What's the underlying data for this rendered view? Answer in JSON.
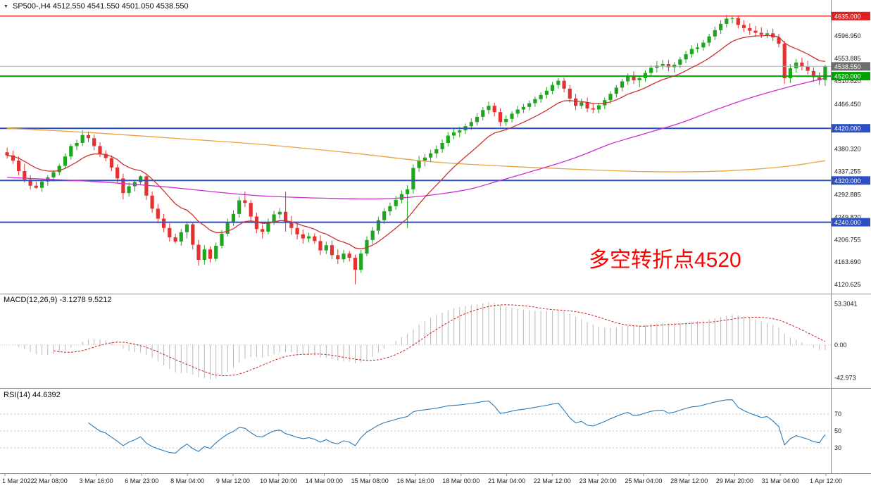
{
  "header": {
    "symbol": "SP500-,H4",
    "ohlc": "4512.550 4541.550 4501.050 4538.550"
  },
  "icons": {
    "symbol_triangle": "▼"
  },
  "colors": {
    "background": "#ffffff",
    "candle_up": "#1fa51f",
    "candle_down": "#e23232",
    "ma_fast": "#cc3333",
    "ma_medium": "#cc2fcc",
    "ma_slow": "#e8a33c",
    "macd_histogram": "#b9b9b9",
    "macd_signal": "#d02020",
    "rsi_line": "#2a7ab8",
    "annotation": "#ff0000",
    "panel_border": "#8a8a8a",
    "axis_text": "#1a1a1a"
  },
  "chart_data": [
    {
      "type": "candlestick",
      "symbol": "SP500-",
      "timeframe": "H4",
      "ohlc_current": {
        "open": 4512.55,
        "high": 4541.55,
        "low": 4501.05,
        "close": 4538.55
      },
      "price_range": [
        4110,
        4655
      ],
      "annotation": {
        "text": "多空转折点4520",
        "color": "#ff0000"
      },
      "y_ticks": [
        {
          "value": 4596.95,
          "text": "4596.950"
        },
        {
          "value": 4553.885,
          "text": "4553.885"
        },
        {
          "value": 4510.82,
          "text": "4510.820"
        },
        {
          "value": 4466.45,
          "text": "4466.450"
        },
        {
          "value": 4380.32,
          "text": "4380.320"
        },
        {
          "value": 4337.255,
          "text": "4337.255"
        },
        {
          "value": 4292.885,
          "text": "4292.885"
        },
        {
          "value": 4249.82,
          "text": "4249.820"
        },
        {
          "value": 4206.755,
          "text": "4206.755"
        },
        {
          "value": 4163.69,
          "text": "4163.690"
        },
        {
          "value": 4120.625,
          "text": "4120.625"
        }
      ],
      "h_lines": [
        {
          "price": 4635.0,
          "label": "4635.000",
          "color": "#ff2020",
          "width": 1.4,
          "tag": "#e02020"
        },
        {
          "price": 4538.55,
          "label": "4538.550",
          "color": "#aaaaaa",
          "width": 1,
          "tag": "#6e6e6e"
        },
        {
          "price": 4520.0,
          "label": "4520.000",
          "color": "#00a800",
          "width": 2,
          "tag": "#00a000"
        },
        {
          "price": 4420.0,
          "label": "4420.000",
          "color": "#2d4fc4",
          "width": 2,
          "tag": "#2d4fc4"
        },
        {
          "price": 4320.0,
          "label": "4320.000",
          "color": "#2d4fc4",
          "width": 2,
          "tag": "#2d4fc4"
        },
        {
          "price": 4240.0,
          "label": "4240.000",
          "color": "#2d4fc4",
          "width": 2,
          "tag": "#2d4fc4"
        }
      ],
      "moving_averages": [
        {
          "name": "ma-fast",
          "color": "#cc3333",
          "type": "ema",
          "period": 13
        },
        {
          "name": "ma-medium",
          "color": "#cc2fcc",
          "type": "points",
          "points": [
            [
              0,
              4326
            ],
            [
              15,
              4318
            ],
            [
              27,
              4308
            ],
            [
              42,
              4292
            ],
            [
              55,
              4286
            ],
            [
              67,
              4286
            ],
            [
              78,
              4300
            ],
            [
              85,
              4320
            ],
            [
              97,
              4360
            ],
            [
              104,
              4390
            ],
            [
              110,
              4410
            ],
            [
              116,
              4430
            ],
            [
              122,
              4455
            ],
            [
              128,
              4478
            ],
            [
              135,
              4500
            ],
            [
              141,
              4516
            ]
          ]
        },
        {
          "name": "ma-slow",
          "color": "#e8a33c",
          "type": "points",
          "points": [
            [
              0,
              4420
            ],
            [
              14,
              4412
            ],
            [
              30,
              4400
            ],
            [
              45,
              4388
            ],
            [
              60,
              4372
            ],
            [
              73,
              4356
            ],
            [
              85,
              4348
            ],
            [
              97,
              4342
            ],
            [
              110,
              4337
            ],
            [
              120,
              4337
            ],
            [
              128,
              4341
            ],
            [
              135,
              4348
            ],
            [
              141,
              4358
            ]
          ]
        }
      ],
      "x_labels": [
        "1 Mar 2022",
        "2 Mar 08:00",
        "3 Mar 16:00",
        "6 Mar 23:00",
        "8 Mar 04:00",
        "9 Mar 12:00",
        "10 Mar 20:00",
        "14 Mar 00:00",
        "15 Mar 08:00",
        "16 Mar 16:00",
        "18 Mar 00:00",
        "21 Mar 04:00",
        "22 Mar 12:00",
        "23 Mar 20:00",
        "25 Mar 04:00",
        "28 Mar 12:00",
        "29 Mar 20:00",
        "31 Mar 04:00",
        "1 Apr 12:00"
      ],
      "candles": [
        [
          4374,
          4383,
          4362,
          4368
        ],
        [
          4368,
          4377,
          4352,
          4358
        ],
        [
          4358,
          4366,
          4330,
          4338
        ],
        [
          4338,
          4352,
          4316,
          4322
        ],
        [
          4322,
          4330,
          4303,
          4310
        ],
        [
          4310,
          4318,
          4304,
          4306
        ],
        [
          4306,
          4322,
          4298,
          4318
        ],
        [
          4318,
          4330,
          4310,
          4326
        ],
        [
          4326,
          4340,
          4318,
          4336
        ],
        [
          4336,
          4352,
          4330,
          4348
        ],
        [
          4348,
          4372,
          4342,
          4366
        ],
        [
          4366,
          4390,
          4360,
          4386
        ],
        [
          4386,
          4398,
          4378,
          4392
        ],
        [
          4392,
          4416,
          4386,
          4407
        ],
        [
          4407,
          4414,
          4394,
          4401
        ],
        [
          4401,
          4408,
          4378,
          4386
        ],
        [
          4386,
          4393,
          4365,
          4371
        ],
        [
          4371,
          4378,
          4357,
          4363
        ],
        [
          4363,
          4368,
          4338,
          4345
        ],
        [
          4345,
          4351,
          4316,
          4324
        ],
        [
          4324,
          4333,
          4284,
          4296
        ],
        [
          4296,
          4316,
          4289,
          4309
        ],
        [
          4309,
          4321,
          4299,
          4317
        ],
        [
          4317,
          4330,
          4311,
          4328
        ],
        [
          4328,
          4331,
          4283,
          4291
        ],
        [
          4291,
          4299,
          4258,
          4266
        ],
        [
          4266,
          4275,
          4238,
          4247
        ],
        [
          4247,
          4256,
          4221,
          4229
        ],
        [
          4229,
          4238,
          4203,
          4211
        ],
        [
          4211,
          4218,
          4199,
          4203
        ],
        [
          4203,
          4227,
          4195,
          4221
        ],
        [
          4221,
          4242,
          4209,
          4236
        ],
        [
          4236,
          4240,
          4188,
          4197
        ],
        [
          4197,
          4206,
          4157,
          4168
        ],
        [
          4168,
          4196,
          4159,
          4188
        ],
        [
          4188,
          4194,
          4163,
          4170
        ],
        [
          4170,
          4201,
          4165,
          4195
        ],
        [
          4195,
          4225,
          4190,
          4218
        ],
        [
          4218,
          4247,
          4213,
          4240
        ],
        [
          4240,
          4263,
          4233,
          4256
        ],
        [
          4256,
          4289,
          4249,
          4282
        ],
        [
          4282,
          4299,
          4269,
          4277
        ],
        [
          4277,
          4283,
          4243,
          4251
        ],
        [
          4251,
          4258,
          4219,
          4227
        ],
        [
          4227,
          4236,
          4209,
          4222
        ],
        [
          4222,
          4247,
          4217,
          4240
        ],
        [
          4240,
          4262,
          4235,
          4255
        ],
        [
          4255,
          4267,
          4247,
          4260
        ],
        [
          4260,
          4299,
          4222,
          4240
        ],
        [
          4240,
          4252,
          4216,
          4229
        ],
        [
          4229,
          4238,
          4207,
          4217
        ],
        [
          4217,
          4226,
          4199,
          4209
        ],
        [
          4209,
          4220,
          4201,
          4213
        ],
        [
          4213,
          4219,
          4199,
          4204
        ],
        [
          4204,
          4215,
          4177,
          4186
        ],
        [
          4186,
          4203,
          4179,
          4196
        ],
        [
          4196,
          4205,
          4169,
          4177
        ],
        [
          4177,
          4188,
          4160,
          4169
        ],
        [
          4169,
          4187,
          4163,
          4180
        ],
        [
          4180,
          4185,
          4165,
          4172
        ],
        [
          4172,
          4178,
          4121,
          4149
        ],
        [
          4149,
          4187,
          4143,
          4180
        ],
        [
          4180,
          4213,
          4175,
          4206
        ],
        [
          4206,
          4231,
          4199,
          4224
        ],
        [
          4224,
          4251,
          4217,
          4244
        ],
        [
          4244,
          4267,
          4237,
          4261
        ],
        [
          4261,
          4278,
          4253,
          4271
        ],
        [
          4271,
          4290,
          4264,
          4283
        ],
        [
          4283,
          4301,
          4276,
          4294
        ],
        [
          4294,
          4311,
          4229,
          4303
        ],
        [
          4303,
          4351,
          4295,
          4344
        ],
        [
          4344,
          4367,
          4337,
          4358
        ],
        [
          4358,
          4371,
          4347,
          4364
        ],
        [
          4364,
          4379,
          4355,
          4372
        ],
        [
          4372,
          4387,
          4363,
          4380
        ],
        [
          4380,
          4399,
          4373,
          4392
        ],
        [
          4392,
          4413,
          4385,
          4406
        ],
        [
          4406,
          4419,
          4399,
          4412
        ],
        [
          4412,
          4423,
          4403,
          4416
        ],
        [
          4416,
          4429,
          4409,
          4424
        ],
        [
          4424,
          4439,
          4417,
          4432
        ],
        [
          4432,
          4449,
          4425,
          4442
        ],
        [
          4442,
          4461,
          4435,
          4455
        ],
        [
          4455,
          4471,
          4447,
          4463
        ],
        [
          4463,
          4469,
          4443,
          4451
        ],
        [
          4451,
          4458,
          4424,
          4432
        ],
        [
          4432,
          4445,
          4425,
          4438
        ],
        [
          4438,
          4453,
          4431,
          4448
        ],
        [
          4448,
          4463,
          4441,
          4456
        ],
        [
          4456,
          4467,
          4449,
          4461
        ],
        [
          4461,
          4473,
          4454,
          4468
        ],
        [
          4468,
          4481,
          4461,
          4476
        ],
        [
          4476,
          4489,
          4469,
          4484
        ],
        [
          4484,
          4499,
          4477,
          4492
        ],
        [
          4492,
          4509,
          4485,
          4503
        ],
        [
          4503,
          4516,
          4496,
          4511
        ],
        [
          4511,
          4517,
          4489,
          4496
        ],
        [
          4496,
          4503,
          4469,
          4477
        ],
        [
          4477,
          4486,
          4455,
          4463
        ],
        [
          4463,
          4477,
          4457,
          4470
        ],
        [
          4470,
          4479,
          4451,
          4458
        ],
        [
          4458,
          4467,
          4449,
          4456
        ],
        [
          4456,
          4469,
          4449,
          4464
        ],
        [
          4464,
          4479,
          4457,
          4474
        ],
        [
          4474,
          4491,
          4467,
          4486
        ],
        [
          4486,
          4503,
          4479,
          4498
        ],
        [
          4498,
          4515,
          4491,
          4510
        ],
        [
          4510,
          4525,
          4503,
          4520
        ],
        [
          4520,
          4529,
          4505,
          4512
        ],
        [
          4512,
          4521,
          4499,
          4516
        ],
        [
          4516,
          4531,
          4509,
          4526
        ],
        [
          4526,
          4541,
          4519,
          4536
        ],
        [
          4536,
          4549,
          4527,
          4540
        ],
        [
          4540,
          4551,
          4533,
          4543
        ],
        [
          4543,
          4551,
          4529,
          4537
        ],
        [
          4537,
          4547,
          4527,
          4542
        ],
        [
          4542,
          4557,
          4535,
          4552
        ],
        [
          4552,
          4569,
          4545,
          4562
        ],
        [
          4562,
          4579,
          4555,
          4572
        ],
        [
          4572,
          4583,
          4565,
          4575
        ],
        [
          4575,
          4589,
          4569,
          4584
        ],
        [
          4584,
          4601,
          4577,
          4596
        ],
        [
          4596,
          4615,
          4589,
          4608
        ],
        [
          4608,
          4627,
          4601,
          4620
        ],
        [
          4620,
          4637,
          4613,
          4630
        ],
        [
          4630,
          4636,
          4621,
          4631
        ],
        [
          4631,
          4635,
          4611,
          4618
        ],
        [
          4618,
          4627,
          4605,
          4612
        ],
        [
          4612,
          4621,
          4599,
          4607
        ],
        [
          4607,
          4616,
          4595,
          4603
        ],
        [
          4603,
          4614,
          4593,
          4599
        ],
        [
          4599,
          4609,
          4593,
          4602
        ],
        [
          4602,
          4611,
          4587,
          4594
        ],
        [
          4594,
          4601,
          4575,
          4582
        ],
        [
          4582,
          4588,
          4505,
          4516
        ],
        [
          4516,
          4543,
          4507,
          4535
        ],
        [
          4535,
          4553,
          4527,
          4546
        ],
        [
          4546,
          4555,
          4531,
          4538
        ],
        [
          4538,
          4549,
          4523,
          4530
        ],
        [
          4530,
          4537,
          4509,
          4518
        ],
        [
          4518,
          4527,
          4503,
          4512
        ],
        [
          4512.55,
          4541.55,
          4501.05,
          4538.55
        ]
      ]
    },
    {
      "type": "macd",
      "label": "MACD(12,26,9)",
      "values": "-3.1278 9.5212",
      "params": [
        12,
        26,
        9
      ],
      "y_labels": [
        {
          "value": 53.3041,
          "text": "53.3041"
        },
        {
          "value": 0,
          "text": "0.00"
        },
        {
          "value": -42.973,
          "text": "-42.973"
        }
      ]
    },
    {
      "type": "rsi",
      "label": "RSI(14)",
      "value": "44.6392",
      "period": 14,
      "range": [
        0,
        100
      ],
      "levels": [
        {
          "value": 70,
          "text": "70"
        },
        {
          "value": 50,
          "text": "50"
        },
        {
          "value": 30,
          "text": "30"
        }
      ]
    }
  ]
}
